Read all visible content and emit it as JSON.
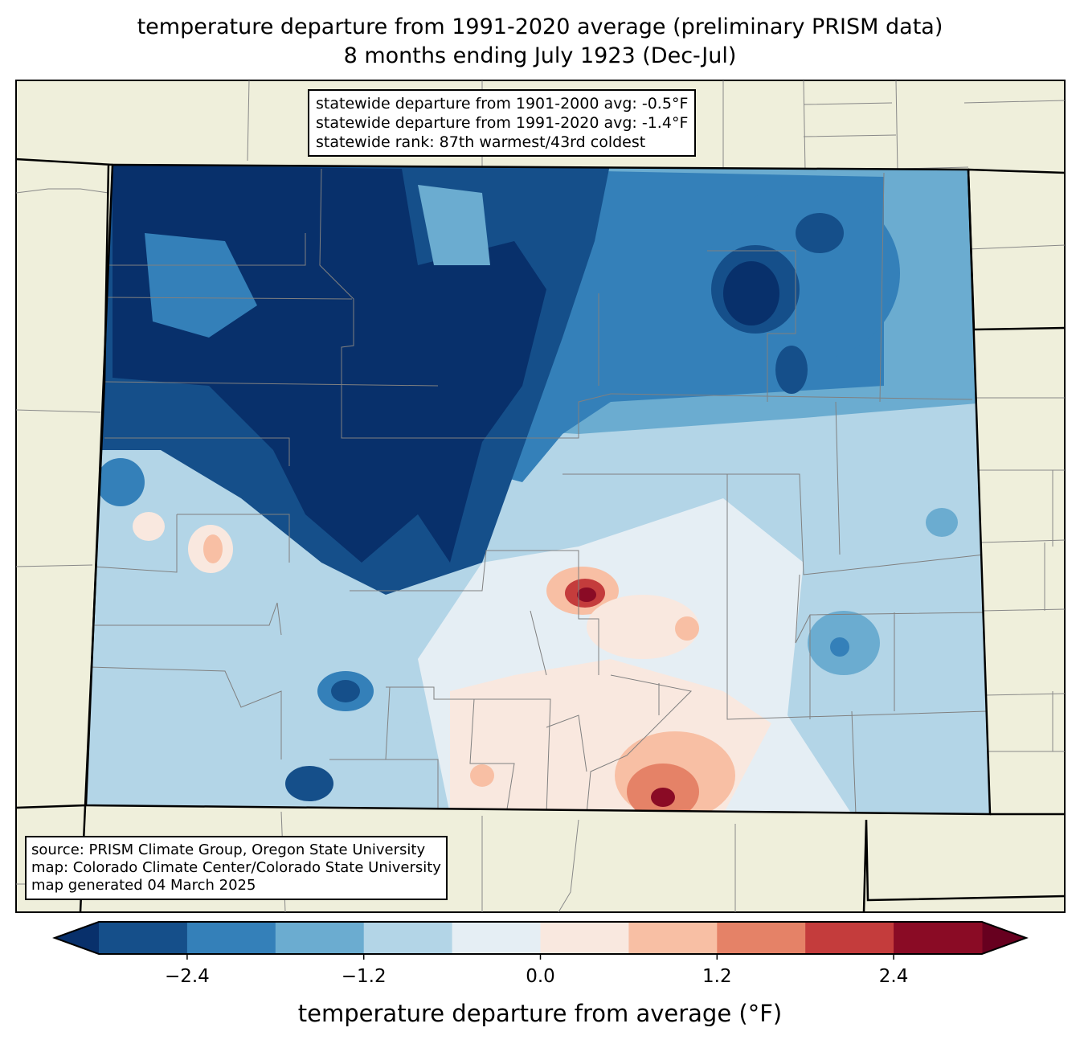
{
  "title": {
    "line1": "temperature departure from 1991-2020 average (preliminary PRISM data)",
    "line2": "8 months ending July 1923 (Dec-Jul)"
  },
  "stats_box": {
    "line1": "statewide departure from 1901-2000 avg: -0.5°F",
    "line2": "statewide departure from 1991-2020 avg: -1.4°F",
    "line3": "statewide rank: 87th warmest/43rd coldest"
  },
  "source_box": {
    "line1": "source: PRISM Climate Group, Oregon State University",
    "line2": "map: Colorado Climate Center/Colorado State University",
    "line3": "map generated 04 March 2025"
  },
  "colorbar": {
    "label": "temperature departure from average (°F)",
    "levels": [
      -3.0,
      -2.4,
      -1.8,
      -1.2,
      -0.6,
      0.0,
      0.6,
      1.2,
      1.8,
      2.4,
      3.0
    ],
    "colors": [
      "#154f8a",
      "#3480b9",
      "#6bacd0",
      "#b3d5e7",
      "#e5eef4",
      "#f9e8df",
      "#f8bfa4",
      "#e58267",
      "#c43c3c",
      "#8a0b25"
    ],
    "extend_min_color": "#08306b",
    "extend_max_color": "#67001f",
    "ticks": [
      "−2.4",
      "−1.2",
      "0.0",
      "1.2",
      "2.4"
    ],
    "tick_values": [
      -2.4,
      -1.2,
      0.0,
      1.2,
      2.4
    ]
  },
  "colors": {
    "land": "#efefdb",
    "border": "#808080"
  }
}
